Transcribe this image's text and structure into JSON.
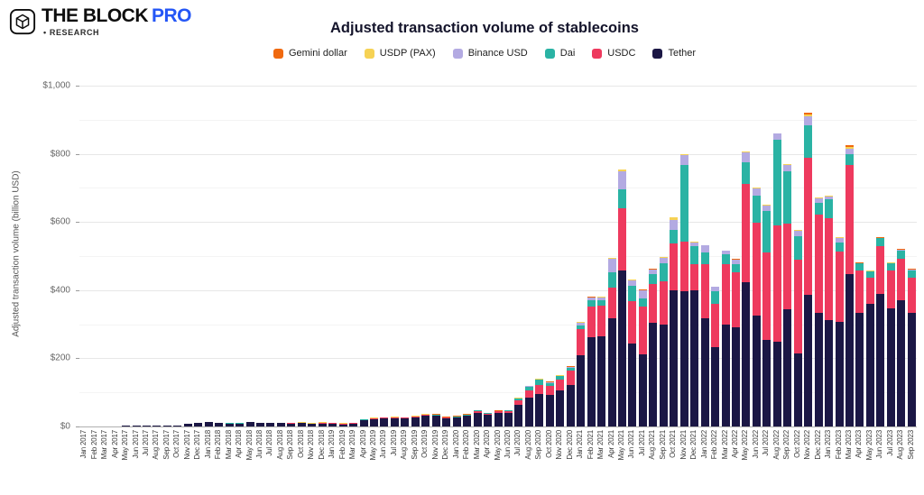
{
  "header": {
    "brand": "THE BLOCK",
    "pro": "PRO",
    "research": "• RESEARCH"
  },
  "y_axis": {
    "title": "Adjusted transaction volume (billion USD)",
    "tick_labels": [
      "$0",
      "$200",
      "$400",
      "$600",
      "$800",
      "$1,000"
    ],
    "tick_values": [
      0,
      200,
      400,
      600,
      800,
      1000
    ]
  },
  "legend": [
    {
      "label": "Gemini dollar",
      "color": "#f0690f"
    },
    {
      "label": "USDP (PAX)",
      "color": "#f6d254"
    },
    {
      "label": "Binance USD",
      "color": "#b3aae2"
    },
    {
      "label": "Dai",
      "color": "#2ab3a4"
    },
    {
      "label": "USDC",
      "color": "#ee3a5e"
    },
    {
      "label": "Tether",
      "color": "#1b1745"
    }
  ],
  "chart_data": {
    "type": "bar",
    "stacked": true,
    "title": "Adjusted transaction volume of stablecoins",
    "xlabel": "",
    "ylabel": "Adjusted transaction volume (billion USD)",
    "ylim": [
      0,
      1000
    ],
    "grid": "horizontal, major every 200 with faint minor every 100",
    "legend_position": "top",
    "categories": [
      "Jan 2017",
      "Feb 2017",
      "Mar 2017",
      "Apr 2017",
      "May 2017",
      "Jun 2017",
      "Jul 2017",
      "Aug 2017",
      "Sep 2017",
      "Oct 2017",
      "Nov 2017",
      "Dec 2017",
      "Jan 2018",
      "Feb 2018",
      "Mar 2018",
      "Apr 2018",
      "May 2018",
      "Jun 2018",
      "Jul 2018",
      "Aug 2018",
      "Sep 2018",
      "Oct 2018",
      "Nov 2018",
      "Dec 2018",
      "Jan 2019",
      "Feb 2019",
      "Mar 2019",
      "Apr 2019",
      "May 2019",
      "Jun 2019",
      "Jul 2019",
      "Aug 2019",
      "Sep 2019",
      "Oct 2019",
      "Nov 2019",
      "Dec 2019",
      "Jan 2020",
      "Feb 2020",
      "Mar 2020",
      "Apr 2020",
      "May 2020",
      "Jun 2020",
      "Jul 2020",
      "Aug 2020",
      "Sep 2020",
      "Oct 2020",
      "Nov 2020",
      "Dec 2020",
      "Jan 2021",
      "Feb 2021",
      "Mar 2021",
      "Apr 2021",
      "May 2021",
      "Jun 2021",
      "Jul 2021",
      "Aug 2021",
      "Sep 2021",
      "Oct 2021",
      "Nov 2021",
      "Dec 2021",
      "Jan 2022",
      "Feb 2022",
      "Mar 2022",
      "Apr 2022",
      "May 2022",
      "Jun 2022",
      "Jul 2022",
      "Aug 2022",
      "Sep 2022",
      "Oct 2022",
      "Nov 2022",
      "Dec 2022",
      "Jan 2023",
      "Feb 2023",
      "Mar 2023",
      "Apr 2023",
      "May 2023",
      "Jun 2023",
      "Jul 2023",
      "Aug 2023",
      "Sep 2023"
    ],
    "series": [
      {
        "name": "Tether",
        "color": "#1b1745",
        "values": [
          0.6,
          0.7,
          0.8,
          1,
          1.5,
          2,
          2,
          2.5,
          3,
          4,
          7,
          11,
          13.5,
          10.5,
          8.7,
          8.8,
          12.5,
          9.8,
          9.9,
          9.6,
          8.8,
          9.8,
          7.2,
          9.3,
          8.5,
          6.5,
          8.6,
          18.5,
          22,
          24,
          25,
          24,
          27.5,
          32,
          31,
          24.5,
          26,
          31,
          41,
          34,
          40,
          41,
          64,
          85,
          94,
          92,
          105,
          122,
          210,
          262,
          265,
          318,
          458,
          243,
          211,
          304,
          299,
          400,
          396,
          400,
          317,
          233,
          299,
          290,
          422,
          325,
          255,
          250,
          345,
          215,
          387,
          334,
          312,
          306,
          447,
          334,
          360,
          390,
          347,
          370,
          334
        ]
      },
      {
        "name": "USDC",
        "color": "#ee3a5e",
        "values": [
          0,
          0,
          0,
          0,
          0,
          0,
          0,
          0,
          0,
          0,
          0,
          0,
          0,
          0,
          0,
          0,
          0,
          0,
          0,
          0,
          0.2,
          0.5,
          0.7,
          1,
          0.8,
          0.7,
          0.8,
          1.2,
          1.5,
          1.3,
          1.7,
          1.3,
          1.7,
          1.7,
          1.7,
          1.2,
          1.7,
          1.7,
          4.5,
          3.5,
          4,
          4.5,
          12,
          22,
          28,
          26,
          32,
          42,
          75,
          90,
          89,
          90,
          182,
          125,
          140,
          114,
          127,
          137,
          146,
          76,
          158,
          128,
          176,
          163,
          291,
          274,
          256,
          340,
          250,
          274,
          401,
          287,
          300,
          208,
          319,
          124,
          76,
          138,
          111,
          123,
          102
        ]
      },
      {
        "name": "Dai",
        "color": "#2ab3a4",
        "values": [
          0,
          0,
          0,
          0,
          0,
          0,
          0,
          0,
          0,
          0,
          0,
          0,
          0.3,
          0.8,
          0.3,
          0.3,
          0.5,
          0.4,
          0.3,
          0.4,
          0.3,
          0.3,
          0.3,
          0.4,
          0.4,
          0.3,
          0.3,
          0.3,
          0.3,
          0.3,
          0.3,
          0.3,
          0.3,
          0.3,
          0.3,
          0.3,
          0.3,
          0.3,
          0.9,
          0.8,
          0.8,
          0.9,
          6,
          10,
          15,
          10,
          10,
          8,
          12,
          18,
          16,
          45,
          56,
          45,
          26,
          30,
          52,
          40,
          226,
          52,
          36,
          35,
          31,
          22,
          62,
          79,
          122,
          250,
          155,
          70,
          97,
          35,
          56,
          25,
          34,
          20,
          19,
          24,
          21,
          24,
          23
        ]
      },
      {
        "name": "Binance USD",
        "color": "#b3aae2",
        "values": [
          0,
          0,
          0,
          0,
          0,
          0,
          0,
          0,
          0,
          0,
          0,
          0,
          0,
          0,
          0,
          0,
          0,
          0,
          0,
          0,
          0,
          0,
          0,
          0,
          0,
          0,
          0,
          0,
          0,
          0,
          0,
          0,
          0,
          0,
          0,
          0,
          0,
          0,
          0,
          0,
          0,
          0,
          0.4,
          0.8,
          1.5,
          1.5,
          2,
          2.5,
          8,
          8,
          9,
          38,
          52,
          15,
          22,
          12,
          17,
          30,
          29,
          13,
          20,
          13,
          9,
          14,
          30,
          21,
          16,
          19,
          18,
          16,
          26,
          14,
          8,
          15,
          14,
          1,
          0.5,
          0.5,
          0.5,
          0.5,
          0.5
        ]
      },
      {
        "name": "USDP (PAX)",
        "color": "#f6d254",
        "values": [
          0,
          0,
          0,
          0,
          0,
          0,
          0,
          0,
          0,
          0,
          0,
          0,
          0,
          0,
          0,
          0,
          0,
          0,
          0,
          0,
          0.2,
          0.3,
          0.3,
          0.3,
          0.2,
          0.2,
          0.2,
          0.3,
          0.3,
          0.3,
          0.3,
          0.3,
          0.3,
          0.3,
          0.3,
          0.3,
          0.3,
          0.3,
          0.3,
          0.3,
          0.3,
          0.3,
          0.3,
          0.4,
          0.5,
          0.5,
          0.5,
          0.5,
          0.5,
          0.5,
          0.6,
          4,
          6,
          2.5,
          1.5,
          1,
          2,
          7,
          2,
          1,
          1,
          1,
          1,
          1,
          1,
          1,
          1,
          1,
          2,
          2,
          5,
          1,
          1,
          1,
          6,
          1,
          0.5,
          0.5,
          0.5,
          0.5,
          0.5
        ]
      },
      {
        "name": "Gemini dollar",
        "color": "#f0690f",
        "values": [
          0,
          0,
          0,
          0,
          0,
          0,
          0,
          0,
          0,
          0,
          0,
          0,
          0,
          0,
          0,
          0,
          0,
          0,
          0,
          0,
          0,
          0,
          0,
          0,
          0,
          0,
          0,
          0,
          0,
          0,
          0,
          0,
          0.2,
          0.2,
          0.2,
          0.2,
          0.2,
          0.2,
          0.2,
          0.2,
          0.2,
          0.2,
          0.2,
          0.2,
          0.2,
          0.2,
          0.2,
          0.2,
          0.3,
          0.3,
          0.3,
          0.5,
          1,
          0.3,
          0.3,
          0.3,
          0.3,
          1,
          1,
          0.3,
          0.3,
          0.3,
          0.3,
          0.3,
          0.3,
          0.3,
          0.3,
          0.3,
          0.3,
          0.3,
          4,
          0.3,
          0.3,
          0.3,
          5,
          0.3,
          0.2,
          0.2,
          0.2,
          0.2,
          0.2
        ]
      }
    ]
  }
}
